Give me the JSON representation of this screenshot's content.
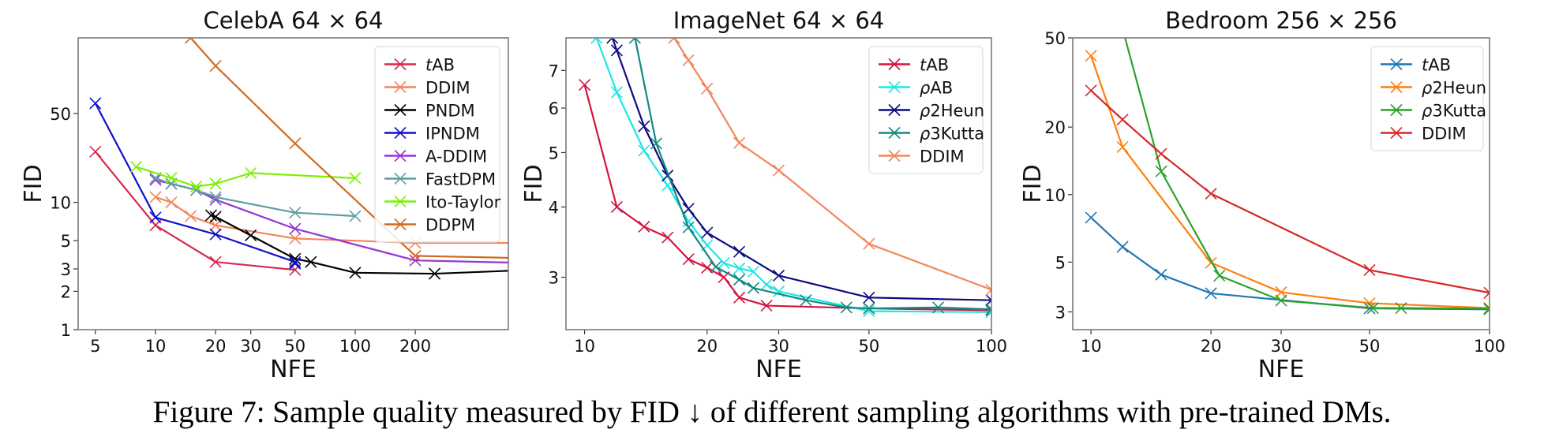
{
  "caption": "Figure 7: Sample quality measured by FID ↓ of different sampling algorithms with pre-trained DMs.",
  "chart_data": [
    {
      "type": "line",
      "title": "CelebA 64 × 64",
      "xlabel": "NFE",
      "ylabel": "FID",
      "xscale": "log",
      "yscale": "log",
      "xlim": [
        4.1,
        585
      ],
      "ylim": [
        1,
        196
      ],
      "xticks": [
        5,
        10,
        20,
        30,
        50,
        100,
        200
      ],
      "yticks": [
        1,
        2,
        3,
        5,
        10,
        50
      ],
      "grid": false,
      "marker": "x",
      "legend_position": "top-right",
      "series": [
        {
          "name": "tAB",
          "color": "#d42a4f",
          "points": [
            [
              5,
              25
            ],
            [
              10,
              6.6
            ],
            [
              20,
              3.4
            ],
            [
              50,
              2.95
            ]
          ]
        },
        {
          "name": "DDIM",
          "color": "#f2865a",
          "points": [
            [
              10,
              11
            ],
            [
              12,
              10
            ],
            [
              15,
              7.8
            ],
            [
              20,
              6.6
            ],
            [
              50,
              5.2
            ],
            [
              200,
              4.8
            ],
            [
              1000,
              4.8
            ]
          ]
        },
        {
          "name": "PNDM",
          "color": "#000000",
          "points": [
            [
              19,
              7.9
            ],
            [
              20,
              7.7
            ],
            [
              30,
              5.5
            ],
            [
              50,
              3.6
            ],
            [
              60,
              3.4
            ],
            [
              100,
              2.8
            ],
            [
              250,
              2.75
            ],
            [
              1000,
              3.0
            ]
          ]
        },
        {
          "name": "IPNDM",
          "color": "#1010cc",
          "points": [
            [
              5,
              60
            ],
            [
              10,
              7.6
            ],
            [
              20,
              5.6
            ],
            [
              50,
              3.4
            ],
            [
              50,
              3.3
            ]
          ]
        },
        {
          "name": "A-DDIM",
          "color": "#9536d6",
          "points": [
            [
              10,
              15
            ],
            [
              12,
              14
            ],
            [
              16,
              12.5
            ],
            [
              20,
              10.5
            ],
            [
              50,
              6.2
            ],
            [
              200,
              3.5
            ],
            [
              1000,
              3.3
            ]
          ]
        },
        {
          "name": "FastDPM",
          "color": "#5f9ea0",
          "points": [
            [
              10,
              15.5
            ],
            [
              12,
              14
            ],
            [
              16,
              12.5
            ],
            [
              20,
              11
            ],
            [
              50,
              8.3
            ],
            [
              100,
              7.8
            ]
          ]
        },
        {
          "name": "Ito-Taylor",
          "color": "#7cf000",
          "points": [
            [
              8,
              19
            ],
            [
              12,
              15.5
            ],
            [
              16,
              13.3
            ],
            [
              20,
              14
            ],
            [
              30,
              17
            ],
            [
              100,
              15.5
            ]
          ]
        },
        {
          "name": "DDPM",
          "color": "#d06a20",
          "points": [
            [
              15,
              196
            ],
            [
              20,
              118
            ],
            [
              50,
              29
            ],
            [
              200,
              3.8
            ],
            [
              1000,
              3.6
            ]
          ]
        }
      ]
    },
    {
      "type": "line",
      "title": "ImageNet 64 × 64",
      "xlabel": "NFE",
      "ylabel": "FID",
      "xscale": "log",
      "yscale": "log",
      "xlim": [
        9,
        100
      ],
      "ylim": [
        2.42,
        8.0
      ],
      "xticks": [
        10,
        20,
        30,
        50,
        100
      ],
      "yticks": [
        3,
        4,
        5,
        6,
        7
      ],
      "grid": false,
      "marker": "x",
      "legend_position": "top-right",
      "series": [
        {
          "name": "tAB",
          "color": "#d21440",
          "points": [
            [
              10,
              6.6
            ],
            [
              12,
              4.0
            ],
            [
              14,
              3.69
            ],
            [
              16,
              3.53
            ],
            [
              18,
              3.23
            ],
            [
              20,
              3.12
            ],
            [
              22,
              3.0
            ],
            [
              24,
              2.76
            ],
            [
              28,
              2.67
            ],
            [
              50,
              2.64
            ],
            [
              100,
              2.62
            ]
          ]
        },
        {
          "name": "ρAB",
          "color": "#1ee6e6",
          "points": [
            [
              10.7,
              8.0
            ],
            [
              12,
              6.4
            ],
            [
              14,
              5.04
            ],
            [
              16,
              4.37
            ],
            [
              18,
              3.77
            ],
            [
              20,
              3.42
            ],
            [
              22,
              3.18
            ],
            [
              24,
              3.11
            ],
            [
              26,
              3.07
            ],
            [
              28,
              2.91
            ],
            [
              30,
              2.83
            ],
            [
              50,
              2.61
            ],
            [
              100,
              2.6
            ]
          ]
        },
        {
          "name": "ρ2Heun",
          "color": "#0c0c80",
          "points": [
            [
              11.7,
              8.0
            ],
            [
              12,
              7.6
            ],
            [
              14,
              5.57
            ],
            [
              16,
              4.55
            ],
            [
              18,
              3.97
            ],
            [
              20,
              3.6
            ],
            [
              24,
              3.33
            ],
            [
              30,
              3.02
            ],
            [
              50,
              2.76
            ],
            [
              100,
              2.73
            ]
          ]
        },
        {
          "name": "ρ3Kutta",
          "color": "#138a80",
          "points": [
            [
              13.3,
              8.0
            ],
            [
              15,
              5.19
            ],
            [
              18,
              3.68
            ],
            [
              21,
              3.13
            ],
            [
              24,
              2.97
            ],
            [
              26,
              2.87
            ],
            [
              35,
              2.73
            ],
            [
              44,
              2.65
            ],
            [
              50,
              2.64
            ],
            [
              74,
              2.65
            ],
            [
              100,
              2.63
            ]
          ]
        },
        {
          "name": "DDIM",
          "color": "#f2865a",
          "points": [
            [
              16.6,
              8.0
            ],
            [
              18,
              7.3
            ],
            [
              20,
              6.5
            ],
            [
              24,
              5.2
            ],
            [
              30,
              4.65
            ],
            [
              50,
              3.44
            ],
            [
              100,
              2.85
            ]
          ]
        }
      ]
    },
    {
      "type": "line",
      "title": "Bedroom 256 × 256",
      "xlabel": "NFE",
      "ylabel": "FID",
      "xscale": "log",
      "yscale": "log",
      "xlim": [
        9,
        100
      ],
      "ylim": [
        2.5,
        50
      ],
      "xticks": [
        10,
        20,
        30,
        50,
        100
      ],
      "yticks": [
        3,
        5,
        10,
        20,
        50
      ],
      "grid": false,
      "marker": "x",
      "legend_position": "top-right",
      "series": [
        {
          "name": "tAB",
          "color": "#1f77b4",
          "points": [
            [
              10,
              7.9
            ],
            [
              12,
              5.85
            ],
            [
              15,
              4.4
            ],
            [
              20,
              3.63
            ],
            [
              50,
              3.11
            ],
            [
              100,
              3.08
            ]
          ]
        },
        {
          "name": "ρ2Heun",
          "color": "#ff7f0e",
          "points": [
            [
              10,
              41.6
            ],
            [
              12,
              16.3
            ],
            [
              20,
              4.97
            ],
            [
              30,
              3.67
            ],
            [
              50,
              3.28
            ],
            [
              100,
              3.12
            ]
          ]
        },
        {
          "name": "ρ3Kutta",
          "color": "#2ca02c",
          "points": [
            [
              12,
              55
            ],
            [
              15,
              12.7
            ],
            [
              21,
              4.35
            ],
            [
              30,
              3.37
            ],
            [
              51,
              3.12
            ],
            [
              60,
              3.12
            ],
            [
              100,
              3.1
            ]
          ]
        },
        {
          "name": "DDIM",
          "color": "#d62728",
          "points": [
            [
              10,
              29.1
            ],
            [
              12,
              21.6
            ],
            [
              15,
              15.2
            ],
            [
              20,
              10.1
            ],
            [
              50,
              4.61
            ],
            [
              100,
              3.65
            ]
          ]
        }
      ]
    }
  ]
}
